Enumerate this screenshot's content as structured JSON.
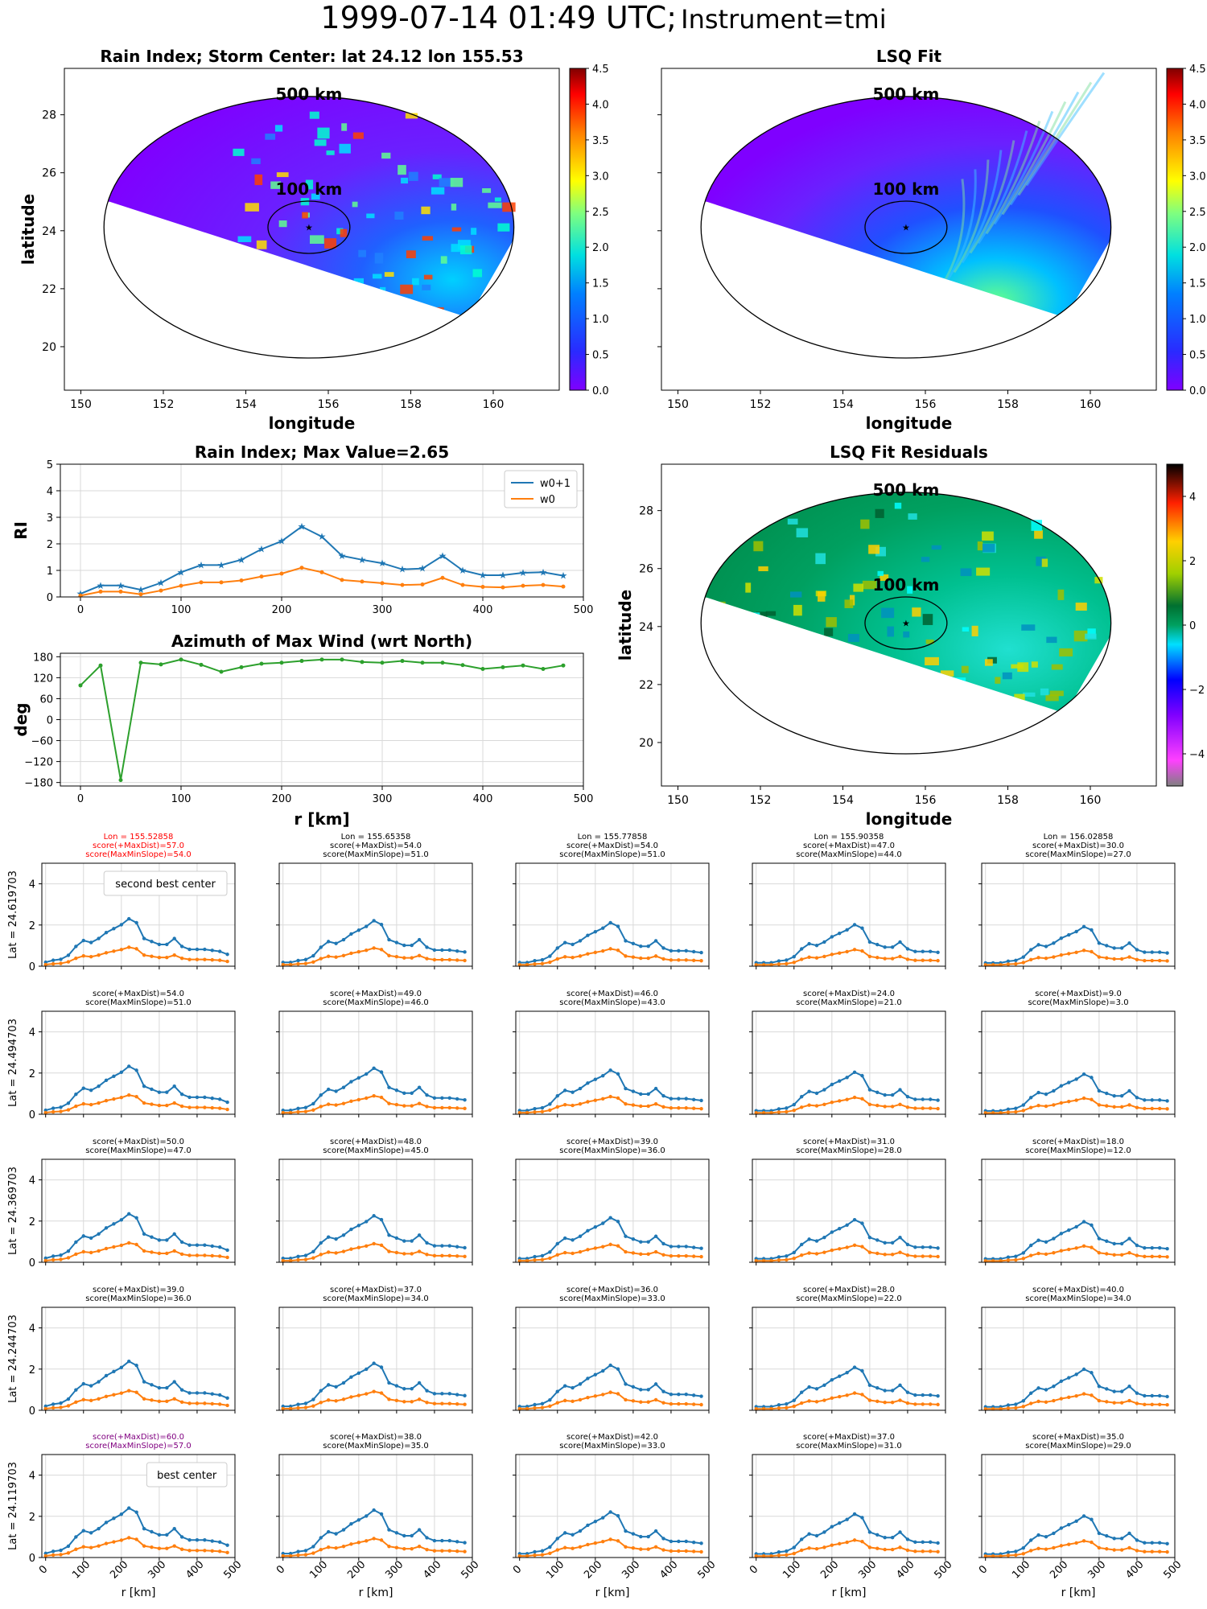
{
  "page": {
    "title_main": "1999-07-14 01:49 UTC;",
    "title_sub": "Instrument=tmi"
  },
  "colors": {
    "w0p1": "#1f77b4",
    "w0": "#ff7f0e",
    "azimuth": "#2ca02c",
    "grid": "#d9d9d9",
    "red_title": "#ff0000",
    "purple_title": "#800080"
  },
  "chart_data": [
    {
      "id": "rain-index-map",
      "type": "heatmap",
      "title": "Rain Index; Storm Center: lat 24.12 lon 155.53",
      "xlabel": "longitude",
      "ylabel": "latitude",
      "xlim": [
        149.6,
        161.6
      ],
      "ylim": [
        18.5,
        29.6
      ],
      "xticks": [
        150,
        152,
        154,
        156,
        158,
        160
      ],
      "yticks": [
        20,
        22,
        24,
        26,
        28
      ],
      "colorbar": {
        "min": 0.0,
        "max": 4.5,
        "ticks": [
          "0.0",
          "0.5",
          "1.0",
          "1.5",
          "2.0",
          "2.5",
          "3.0",
          "3.5",
          "4.0",
          "4.5"
        ],
        "cmap": "jet"
      },
      "annotations": [
        "500 km",
        "100 km"
      ],
      "center": [
        155.53,
        24.12
      ]
    },
    {
      "id": "lsq-fit-map",
      "type": "heatmap",
      "title": "LSQ Fit",
      "xlabel": "longitude",
      "ylabel": "",
      "xlim": [
        149.6,
        161.6
      ],
      "ylim": [
        18.5,
        29.6
      ],
      "xticks": [
        150,
        152,
        154,
        156,
        158,
        160
      ],
      "colorbar": {
        "min": 0.0,
        "max": 4.5,
        "ticks": [
          "0.0",
          "0.5",
          "1.0",
          "1.5",
          "2.0",
          "2.5",
          "3.0",
          "3.5",
          "4.0",
          "4.5"
        ],
        "cmap": "jet"
      },
      "annotations": [
        "500 km",
        "100 km"
      ]
    },
    {
      "id": "rain-index-profile",
      "type": "line",
      "title": "Rain Index; Max Value=2.65",
      "ylabel": "RI",
      "xlim": [
        -20,
        500
      ],
      "ylim": [
        0,
        5
      ],
      "xticks": [
        0,
        100,
        200,
        300,
        400,
        500
      ],
      "yticks": [
        0,
        1,
        2,
        3,
        4,
        5
      ],
      "legend": "top-right",
      "x": [
        0,
        20,
        40,
        60,
        80,
        100,
        120,
        140,
        160,
        180,
        200,
        220,
        240,
        260,
        280,
        300,
        320,
        340,
        360,
        380,
        400,
        420,
        440,
        460,
        480
      ],
      "series": [
        {
          "name": "w0+1",
          "values": [
            0.12,
            0.43,
            0.43,
            0.27,
            0.53,
            0.93,
            1.2,
            1.2,
            1.4,
            1.8,
            2.1,
            2.65,
            2.27,
            1.55,
            1.4,
            1.27,
            1.04,
            1.07,
            1.55,
            1.0,
            0.82,
            0.82,
            0.91,
            0.93,
            0.8
          ]
        },
        {
          "name": "w0",
          "values": [
            0.05,
            0.2,
            0.2,
            0.1,
            0.24,
            0.42,
            0.55,
            0.55,
            0.62,
            0.77,
            0.88,
            1.1,
            0.93,
            0.64,
            0.58,
            0.52,
            0.45,
            0.47,
            0.72,
            0.45,
            0.38,
            0.36,
            0.42,
            0.45,
            0.39
          ]
        }
      ]
    },
    {
      "id": "azimuth-profile",
      "type": "line",
      "title": "Azimuth of Max Wind (wrt North)",
      "xlabel": "r [km]",
      "ylabel": "deg",
      "xlim": [
        -20,
        500
      ],
      "ylim": [
        -190,
        190
      ],
      "xticks": [
        0,
        100,
        200,
        300,
        400,
        500
      ],
      "yticks": [
        180,
        120,
        60,
        0,
        -60,
        -120,
        -180
      ],
      "x": [
        0,
        20,
        40,
        60,
        80,
        100,
        120,
        140,
        160,
        180,
        200,
        220,
        240,
        260,
        280,
        300,
        320,
        340,
        360,
        380,
        400,
        420,
        440,
        460,
        480
      ],
      "series": [
        {
          "values": [
            98,
            155,
            -173,
            163,
            158,
            172,
            157,
            137,
            150,
            160,
            163,
            168,
            172,
            172,
            165,
            163,
            168,
            163,
            163,
            156,
            145,
            150,
            155,
            145,
            155
          ]
        }
      ]
    },
    {
      "id": "lsq-residuals-map",
      "type": "heatmap",
      "title": "LSQ Fit Residuals",
      "xlabel": "longitude",
      "ylabel": "latitude",
      "xlim": [
        149.6,
        161.6
      ],
      "ylim": [
        18.5,
        29.6
      ],
      "xticks": [
        150,
        152,
        154,
        156,
        158,
        160
      ],
      "yticks": [
        20,
        22,
        24,
        26,
        28
      ],
      "colorbar": {
        "min": -5,
        "max": 5,
        "ticks": [
          "4",
          "2",
          "0",
          "−2",
          "−4"
        ],
        "cmap": "diverging"
      },
      "annotations": [
        "500 km",
        "100 km"
      ]
    },
    {
      "id": "center-search-grid",
      "type": "line",
      "xlabel": "r [km]",
      "ylim": [
        0,
        5
      ],
      "yticks": [
        0,
        2,
        4
      ],
      "xticks": [
        0,
        100,
        200,
        300,
        400,
        500
      ],
      "row_labels": [
        "Lat = 24.619703",
        "Lat = 24.494703",
        "Lat = 24.369703",
        "Lat = 24.244703",
        "Lat = 24.119703"
      ],
      "col_titles": [
        "Lon = 155.52858",
        "Lon = 155.65358",
        "Lon = 155.77858",
        "Lon = 155.90358",
        "Lon = 156.02858"
      ],
      "scores": [
        [
          [
            "score(+MaxDist)=57.0",
            "score(MaxMinSlope)=54.0"
          ],
          [
            "score(+MaxDist)=54.0",
            "score(MaxMinSlope)=51.0"
          ],
          [
            "score(+MaxDist)=54.0",
            "score(MaxMinSlope)=51.0"
          ],
          [
            "score(+MaxDist)=47.0",
            "score(MaxMinSlope)=44.0"
          ],
          [
            "score(+MaxDist)=30.0",
            "score(MaxMinSlope)=27.0"
          ]
        ],
        [
          [
            "score(+MaxDist)=54.0",
            "score(MaxMinSlope)=51.0"
          ],
          [
            "score(+MaxDist)=49.0",
            "score(MaxMinSlope)=46.0"
          ],
          [
            "score(+MaxDist)=46.0",
            "score(MaxMinSlope)=43.0"
          ],
          [
            "score(+MaxDist)=24.0",
            "score(MaxMinSlope)=21.0"
          ],
          [
            "score(+MaxDist)=9.0",
            "score(MaxMinSlope)=3.0"
          ]
        ],
        [
          [
            "score(+MaxDist)=50.0",
            "score(MaxMinSlope)=47.0"
          ],
          [
            "score(+MaxDist)=48.0",
            "score(MaxMinSlope)=45.0"
          ],
          [
            "score(+MaxDist)=39.0",
            "score(MaxMinSlope)=36.0"
          ],
          [
            "score(+MaxDist)=31.0",
            "score(MaxMinSlope)=28.0"
          ],
          [
            "score(+MaxDist)=18.0",
            "score(MaxMinSlope)=12.0"
          ]
        ],
        [
          [
            "score(+MaxDist)=39.0",
            "score(MaxMinSlope)=36.0"
          ],
          [
            "score(+MaxDist)=37.0",
            "score(MaxMinSlope)=34.0"
          ],
          [
            "score(+MaxDist)=36.0",
            "score(MaxMinSlope)=33.0"
          ],
          [
            "score(+MaxDist)=28.0",
            "score(MaxMinSlope)=22.0"
          ],
          [
            "score(+MaxDist)=40.0",
            "score(MaxMinSlope)=34.0"
          ]
        ],
        [
          [
            "score(+MaxDist)=60.0",
            "score(MaxMinSlope)=57.0"
          ],
          [
            "score(+MaxDist)=38.0",
            "score(MaxMinSlope)=35.0"
          ],
          [
            "score(+MaxDist)=42.0",
            "score(MaxMinSlope)=33.0"
          ],
          [
            "score(+MaxDist)=37.0",
            "score(MaxMinSlope)=31.0"
          ],
          [
            "score(+MaxDist)=35.0",
            "score(MaxMinSlope)=29.0"
          ]
        ]
      ],
      "highlight": {
        "red": [
          0,
          0
        ],
        "purple": [
          4,
          0
        ]
      },
      "legend_boxes": [
        {
          "row": 0,
          "col": 0,
          "text": "second best center"
        },
        {
          "row": 4,
          "col": 0,
          "text": "best center"
        }
      ],
      "x": [
        0,
        20,
        40,
        60,
        80,
        100,
        120,
        140,
        160,
        180,
        200,
        220,
        240,
        260,
        280,
        300,
        320,
        340,
        360,
        380,
        400,
        420,
        440,
        460,
        480
      ],
      "base_w0p1": [
        0.2,
        0.3,
        0.35,
        0.55,
        1.0,
        1.3,
        1.2,
        1.4,
        1.7,
        1.9,
        2.1,
        2.4,
        2.2,
        1.4,
        1.25,
        1.1,
        1.1,
        1.4,
        1.0,
        0.85,
        0.85,
        0.85,
        0.8,
        0.75,
        0.6
      ]
    }
  ]
}
